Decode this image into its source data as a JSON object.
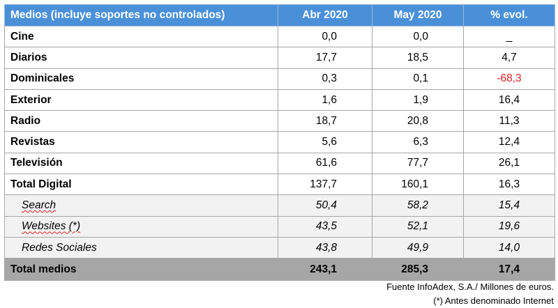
{
  "table": {
    "headers": [
      "Medios (incluye soportes no controlados)",
      "Abr 2020",
      "May 2020",
      "% evol."
    ],
    "rows": [
      {
        "label": "Cine",
        "abr": "0,0",
        "may": "0,0",
        "evol": "_"
      },
      {
        "label": "Diarios",
        "abr": "17,7",
        "may": "18,5",
        "evol": "4,7"
      },
      {
        "label": "Dominicales",
        "abr": "0,3",
        "may": "0,1",
        "evol": "-68,3"
      },
      {
        "label": "Exterior",
        "abr": "1,6",
        "may": "1,9",
        "evol": "16,4"
      },
      {
        "label": "Radio",
        "abr": "18,7",
        "may": "20,8",
        "evol": "11,3"
      },
      {
        "label": "Revistas",
        "abr": "5,6",
        "may": "6,3",
        "evol": "12,4"
      },
      {
        "label": "Televisión",
        "abr": "61,6",
        "may": "77,7",
        "evol": "26,1"
      },
      {
        "label": "Total Digital",
        "abr": "137,7",
        "may": "160,1",
        "evol": "16,3"
      }
    ],
    "digital_sub": [
      {
        "label": "Search",
        "abr": "50,4",
        "may": "58,2",
        "evol": "15,4"
      },
      {
        "label": "Websites (*)",
        "abr": "43,5",
        "may": "52,1",
        "evol": "19,6"
      },
      {
        "label": "Redes Sociales",
        "abr": "43,8",
        "may": "49,9",
        "evol": "14,0"
      }
    ],
    "total": {
      "label": "Total medios",
      "abr": "243,1",
      "may": "285,3",
      "evol": "17,4"
    }
  },
  "footer": {
    "source": "Fuente InfoAdex, S.A./ Millones de euros.",
    "note": "(*) Antes denominado Internet"
  },
  "colors": {
    "header_bg": "#4a90d9",
    "negative": "#e02020",
    "total_bg": "#a6a6a6",
    "sub_bg": "#f2f2f2"
  }
}
